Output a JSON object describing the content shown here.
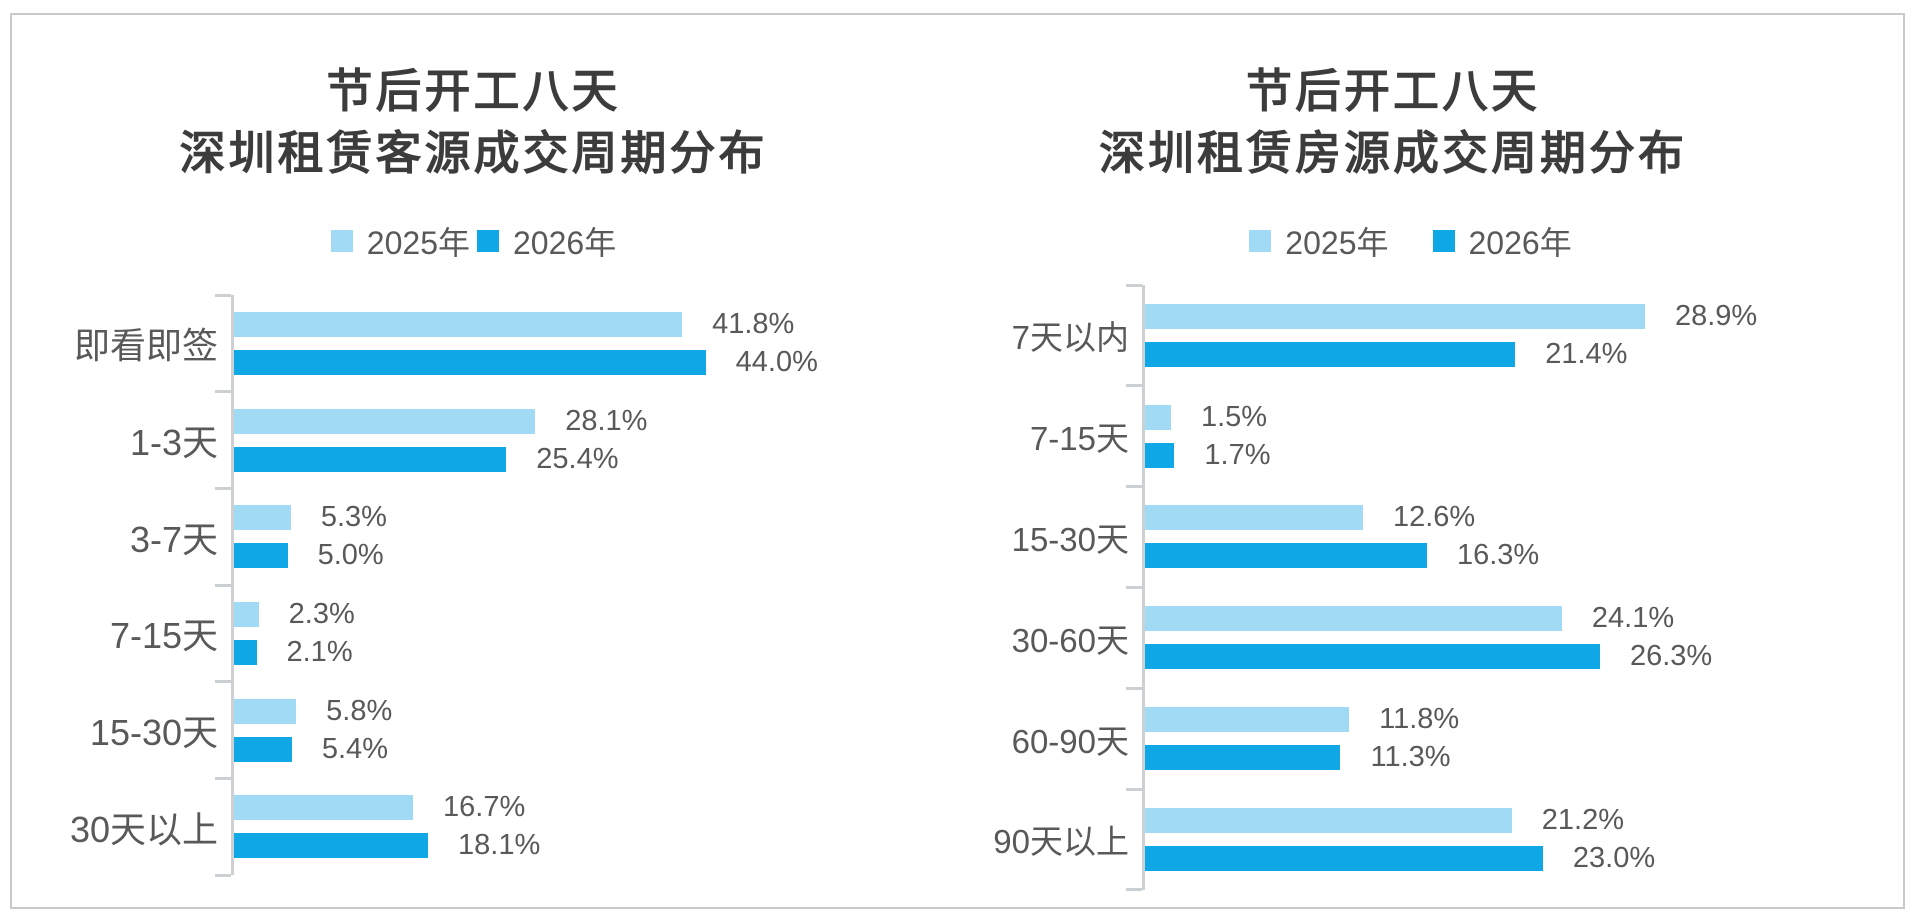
{
  "page": {
    "background": "#FFFFFF",
    "frame_border_color": "#C9C9C9"
  },
  "colors": {
    "series_2025": "#A1DAF4",
    "series_2026": "#0FA7E5",
    "title_text": "#3C3C3C",
    "label_text": "#595959",
    "axis": "#CCD0D3"
  },
  "chart_data": [
    {
      "type": "bar",
      "orientation": "horizontal",
      "title_lines": [
        "节后开工八天",
        "深圳租赁客源成交周期分布"
      ],
      "legend": [
        "2025年",
        "2026年"
      ],
      "legend_position": "top",
      "grid": false,
      "categories": [
        "即看即签",
        "1-3天",
        "3-7天",
        "7-15天",
        "15-30天",
        "30天以上"
      ],
      "series": [
        {
          "name": "2025年",
          "values": [
            41.8,
            28.1,
            5.3,
            2.3,
            5.8,
            16.7
          ]
        },
        {
          "name": "2026年",
          "values": [
            44.0,
            25.4,
            5.0,
            2.1,
            5.4,
            18.1
          ]
        }
      ],
      "value_labels": [
        [
          "41.8%",
          "28.1%",
          "5.3%",
          "2.3%",
          "5.8%",
          "16.7%"
        ],
        [
          "44.0%",
          "25.4%",
          "5.0%",
          "2.1%",
          "5.4%",
          "18.1%"
        ]
      ],
      "value_suffix": "%"
    },
    {
      "type": "bar",
      "orientation": "horizontal",
      "title_lines": [
        "节后开工八天",
        "深圳租赁房源成交周期分布"
      ],
      "legend": [
        "2025年",
        "2026年"
      ],
      "legend_position": "top",
      "grid": false,
      "categories": [
        "7天以内",
        "7-15天",
        "15-30天",
        "30-60天",
        "60-90天",
        "90天以上"
      ],
      "series": [
        {
          "name": "2025年",
          "values": [
            28.9,
            1.5,
            12.6,
            24.1,
            11.8,
            21.2
          ]
        },
        {
          "name": "2026年",
          "values": [
            21.4,
            1.7,
            16.3,
            26.3,
            11.3,
            23.0
          ]
        }
      ],
      "value_labels": [
        [
          "28.9%",
          "1.5%",
          "12.6%",
          "24.1%",
          "11.8%",
          "21.2%"
        ],
        [
          "21.4%",
          "1.7%",
          "16.3%",
          "26.3%",
          "11.3%",
          "23.0%"
        ]
      ],
      "value_suffix": "%"
    }
  ]
}
